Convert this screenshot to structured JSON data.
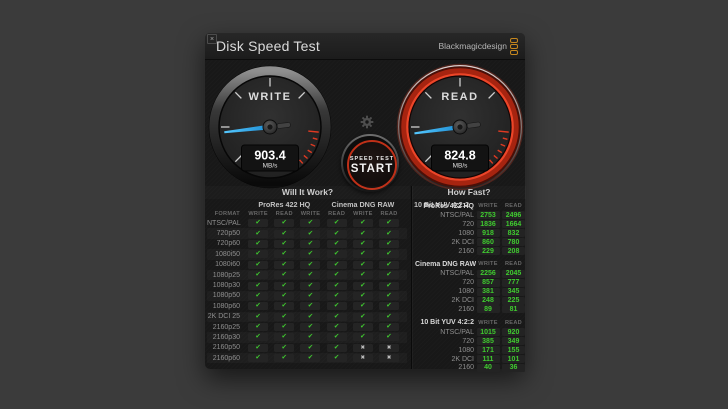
{
  "window": {
    "title": "Disk Speed Test",
    "brand": "Blackmagicdesign",
    "close_glyph": "×"
  },
  "gauges": {
    "write": {
      "label": "WRITE",
      "value": "903.4",
      "unit": "MB/s",
      "needle_angle": -96.5
    },
    "read": {
      "label": "READ",
      "value": "824.8",
      "unit": "MB/s",
      "needle_angle": -98
    }
  },
  "start_button": {
    "line1": "SPEED TEST",
    "line2": "START"
  },
  "glyphs": {
    "check": "✔",
    "x": "✖"
  },
  "colors": {
    "accent_red": "#c0301a",
    "needle_blue": "#2aa9ee",
    "check_green": "#3fca2f",
    "brand_gold": "#c5871e",
    "x_gray": "#bdbdbd"
  },
  "will_it_work": {
    "title": "Will It Work?",
    "format_header": "FORMAT",
    "groups": [
      "ProRes 422 HQ",
      "Cinema DNG RAW",
      "10 Bit YUV 4:2:2"
    ],
    "sub_headers": [
      "WRITE",
      "READ"
    ],
    "rows": [
      {
        "format": "NTSC/PAL",
        "marks": [
          "check",
          "check",
          "check",
          "check",
          "check",
          "check"
        ]
      },
      {
        "format": "720p50",
        "marks": [
          "check",
          "check",
          "check",
          "check",
          "check",
          "check"
        ]
      },
      {
        "format": "720p60",
        "marks": [
          "check",
          "check",
          "check",
          "check",
          "check",
          "check"
        ]
      },
      {
        "format": "1080i50",
        "marks": [
          "check",
          "check",
          "check",
          "check",
          "check",
          "check"
        ]
      },
      {
        "format": "1080i60",
        "marks": [
          "check",
          "check",
          "check",
          "check",
          "check",
          "check"
        ]
      },
      {
        "format": "1080p25",
        "marks": [
          "check",
          "check",
          "check",
          "check",
          "check",
          "check"
        ]
      },
      {
        "format": "1080p30",
        "marks": [
          "check",
          "check",
          "check",
          "check",
          "check",
          "check"
        ]
      },
      {
        "format": "1080p50",
        "marks": [
          "check",
          "check",
          "check",
          "check",
          "check",
          "check"
        ]
      },
      {
        "format": "1080p60",
        "marks": [
          "check",
          "check",
          "check",
          "check",
          "check",
          "check"
        ]
      },
      {
        "format": "2K DCI 25",
        "marks": [
          "check",
          "check",
          "check",
          "check",
          "check",
          "check"
        ]
      },
      {
        "format": "2160p25",
        "marks": [
          "check",
          "check",
          "check",
          "check",
          "check",
          "check"
        ]
      },
      {
        "format": "2160p30",
        "marks": [
          "check",
          "check",
          "check",
          "check",
          "check",
          "check"
        ]
      },
      {
        "format": "2160p50",
        "marks": [
          "check",
          "check",
          "check",
          "check",
          "x",
          "x"
        ]
      },
      {
        "format": "2160p60",
        "marks": [
          "check",
          "check",
          "check",
          "check",
          "x",
          "x"
        ]
      }
    ]
  },
  "how_fast": {
    "title": "How Fast?",
    "sub_headers": [
      "WRITE",
      "READ"
    ],
    "sections": [
      {
        "name": "ProRes 422 HQ",
        "rows": [
          {
            "label": "NTSC/PAL",
            "write": 2753,
            "read": 2496
          },
          {
            "label": "720",
            "write": 1836,
            "read": 1664
          },
          {
            "label": "1080",
            "write": 918,
            "read": 832
          },
          {
            "label": "2K DCI",
            "write": 860,
            "read": 780
          },
          {
            "label": "2160",
            "write": 229,
            "read": 208
          }
        ]
      },
      {
        "name": "Cinema DNG RAW",
        "rows": [
          {
            "label": "NTSC/PAL",
            "write": 2256,
            "read": 2045
          },
          {
            "label": "720",
            "write": 857,
            "read": 777
          },
          {
            "label": "1080",
            "write": 381,
            "read": 345
          },
          {
            "label": "2K DCI",
            "write": 248,
            "read": 225
          },
          {
            "label": "2160",
            "write": 89,
            "read": 81
          }
        ]
      },
      {
        "name": "10 Bit YUV 4:2:2",
        "rows": [
          {
            "label": "NTSC/PAL",
            "write": 1015,
            "read": 920
          },
          {
            "label": "720",
            "write": 385,
            "read": 349
          },
          {
            "label": "1080",
            "write": 171,
            "read": 155
          },
          {
            "label": "2K DCI",
            "write": 111,
            "read": 101
          },
          {
            "label": "2160",
            "write": 40,
            "read": 36
          }
        ]
      }
    ]
  }
}
